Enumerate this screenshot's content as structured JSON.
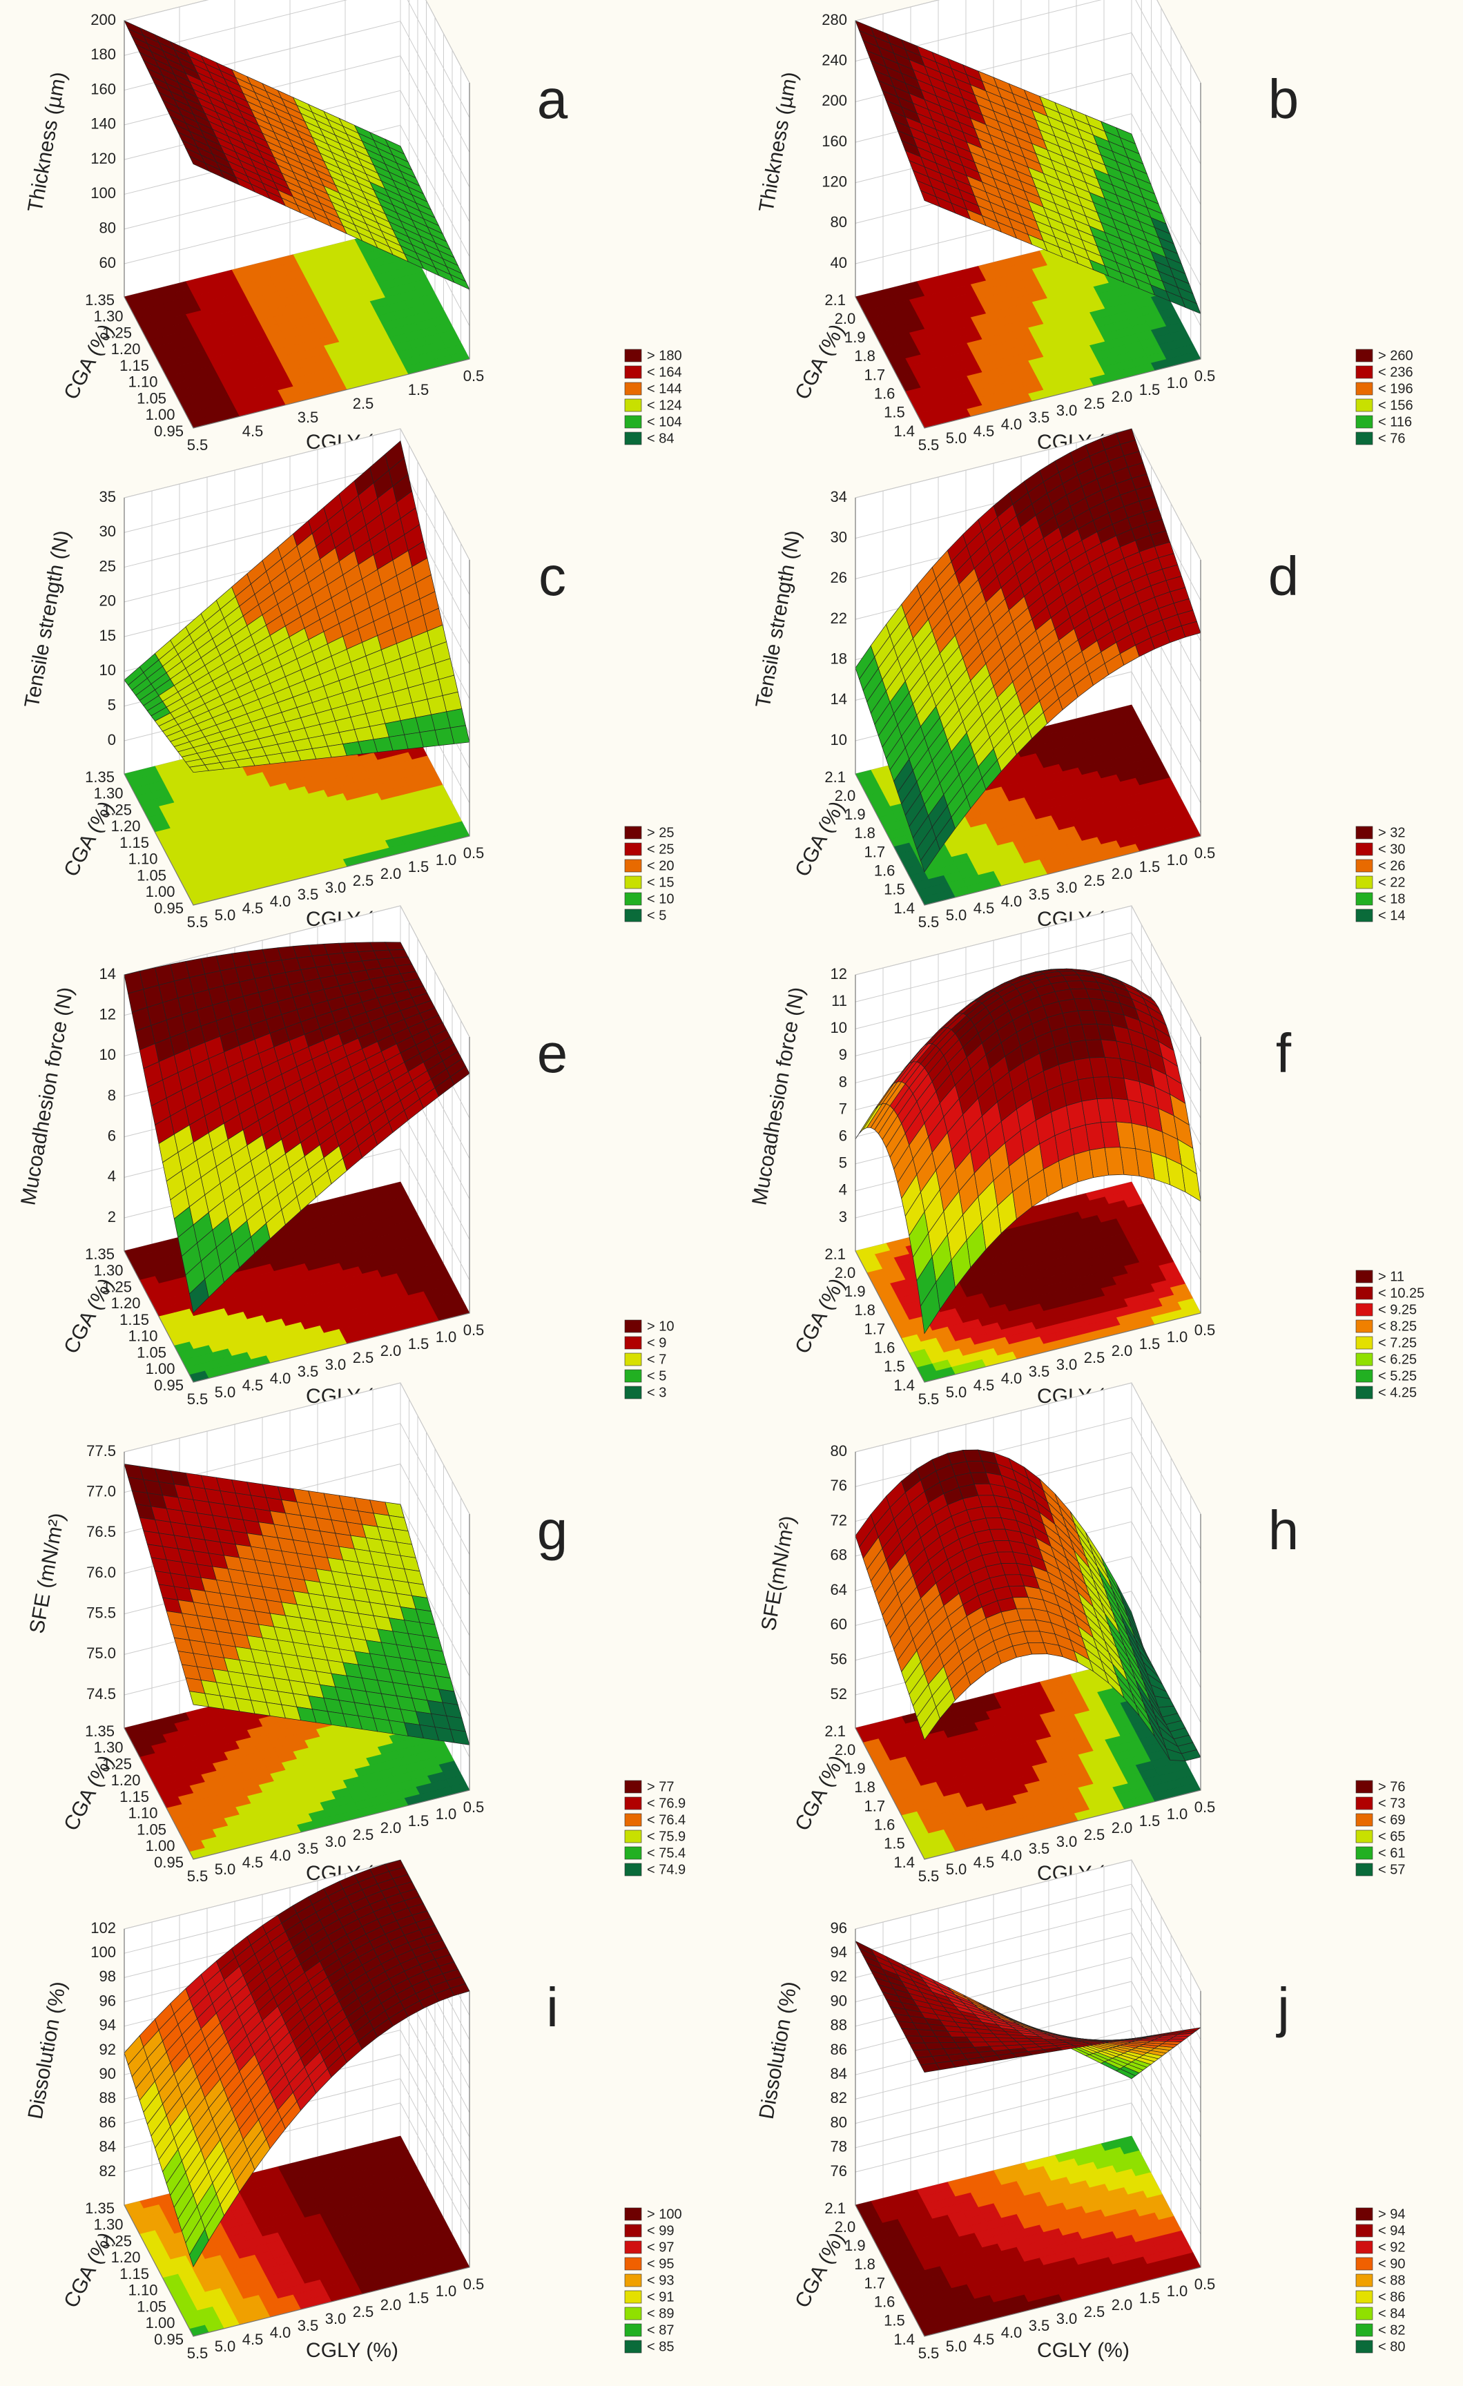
{
  "chart_data": [
    {
      "type": "surface3d",
      "panel_label": "a",
      "zlabel": "Thickness (µm)",
      "xlabel": "CGLY (%)",
      "ylabel": "CGA (%)",
      "xlim": [
        5.5,
        0.5
      ],
      "xticks": [
        5.5,
        4.5,
        3.5,
        2.5,
        1.5,
        0.5
      ],
      "ylim": [
        0.95,
        1.35
      ],
      "yticks": [
        0.95,
        {
          "value": 1,
          "label": "1.00"
        },
        1.05,
        {
          "value": 1.1,
          "label": "1.10"
        },
        1.15,
        {
          "value": 1.2,
          "label": "1.20"
        },
        1.25,
        {
          "value": 1.3,
          "label": "1.30"
        },
        1.35
      ],
      "zlim": [
        60,
        200
      ],
      "zticks": [
        60,
        80,
        100,
        120,
        140,
        160,
        180,
        200
      ],
      "legend": [
        {
          "value": 180,
          "label": "> 180"
        },
        {
          "value": 164,
          "label": "< 164"
        },
        {
          "value": 144,
          "label": "< 144"
        },
        {
          "value": 124,
          "label": "< 124"
        },
        {
          "value": 104,
          "label": "< 104"
        },
        {
          "value": 84,
          "label": "< 84"
        }
      ],
      "colors": [
        "#6e0000",
        "#b00000",
        "#e86a00",
        "#c8e000",
        "#22b022",
        "#0a6b3a"
      ]
    },
    {
      "type": "surface3d",
      "panel_label": "b",
      "zlabel": "Thickness (µm)",
      "xlabel": "CGLY (%)",
      "ylabel": "CGA (%)",
      "xlim": [
        5.5,
        0.5
      ],
      "xticks": [
        5.5,
        {
          "value": 5,
          "label": "5.0"
        },
        4.5,
        {
          "value": 4,
          "label": "4.0"
        },
        3.5,
        {
          "value": 3,
          "label": "3.0"
        },
        2.5,
        {
          "value": 2,
          "label": "2.0"
        },
        1.5,
        {
          "value": 1,
          "label": "1.0"
        },
        0.5
      ],
      "ylim": [
        1.4,
        2.1
      ],
      "yticks": [
        1.4,
        1.5,
        1.6,
        1.7,
        1.8,
        1.9,
        {
          "value": 2,
          "label": "2.0"
        },
        2.1
      ],
      "zlim": [
        40,
        280
      ],
      "zticks": [
        40,
        80,
        120,
        160,
        200,
        240,
        280
      ],
      "legend": [
        {
          "value": 260,
          "label": "> 260"
        },
        {
          "value": 236,
          "label": "< 236"
        },
        {
          "value": 196,
          "label": "< 196"
        },
        {
          "value": 156,
          "label": "< 156"
        },
        {
          "value": 116,
          "label": "< 116"
        },
        {
          "value": 76,
          "label": "< 76"
        }
      ],
      "colors": [
        "#6e0000",
        "#b00000",
        "#e86a00",
        "#c8e000",
        "#22b022",
        "#0a6b3a"
      ]
    },
    {
      "type": "surface3d",
      "panel_label": "c",
      "zlabel": "Tensile strength (N)",
      "xlabel": "CGLY (%)",
      "ylabel": "CGA (%)",
      "xlim": [
        5.5,
        0.5
      ],
      "xticks": [
        5.5,
        {
          "value": 5,
          "label": "5.0"
        },
        4.5,
        {
          "value": 4,
          "label": "4.0"
        },
        3.5,
        {
          "value": 3,
          "label": "3.0"
        },
        2.5,
        {
          "value": 2,
          "label": "2.0"
        },
        1.5,
        {
          "value": 1,
          "label": "1.0"
        },
        0.5
      ],
      "ylim": [
        0.95,
        1.35
      ],
      "yticks": [
        0.95,
        {
          "value": 1,
          "label": "1.00"
        },
        1.05,
        {
          "value": 1.1,
          "label": "1.10"
        },
        1.15,
        {
          "value": 1.2,
          "label": "1.20"
        },
        1.25,
        {
          "value": 1.3,
          "label": "1.30"
        },
        1.35
      ],
      "zlim": [
        0,
        35
      ],
      "zticks": [
        0,
        5,
        10,
        15,
        20,
        25,
        30,
        35
      ],
      "legend": [
        {
          "value": 25,
          "label": "> 25"
        },
        {
          "value": 25,
          "label": "< 25"
        },
        {
          "value": 20,
          "label": "< 20"
        },
        {
          "value": 15,
          "label": "< 15"
        },
        {
          "value": 10,
          "label": "< 10"
        },
        {
          "value": 5,
          "label": "< 5"
        }
      ],
      "colors": [
        "#6e0000",
        "#b00000",
        "#e86a00",
        "#c8e000",
        "#22b022",
        "#0a6b3a"
      ]
    },
    {
      "type": "surface3d",
      "panel_label": "d",
      "zlabel": "Tensile strength (N)",
      "xlabel": "CGLY (%)",
      "ylabel": "CGA (%)",
      "xlim": [
        5.5,
        0.5
      ],
      "xticks": [
        5.5,
        {
          "value": 5,
          "label": "5.0"
        },
        4.5,
        {
          "value": 4,
          "label": "4.0"
        },
        3.5,
        {
          "value": 3,
          "label": "3.0"
        },
        2.5,
        {
          "value": 2,
          "label": "2.0"
        },
        1.5,
        {
          "value": 1,
          "label": "1.0"
        },
        0.5
      ],
      "ylim": [
        1.4,
        2.1
      ],
      "yticks": [
        1.4,
        1.5,
        1.6,
        1.7,
        1.8,
        1.9,
        {
          "value": 2,
          "label": "2.0"
        },
        2.1
      ],
      "zlim": [
        10,
        34
      ],
      "zticks": [
        10,
        14,
        18,
        22,
        26,
        30,
        34
      ],
      "legend": [
        {
          "value": 32,
          "label": "> 32"
        },
        {
          "value": 30,
          "label": "< 30"
        },
        {
          "value": 26,
          "label": "< 26"
        },
        {
          "value": 22,
          "label": "< 22"
        },
        {
          "value": 18,
          "label": "< 18"
        },
        {
          "value": 14,
          "label": "< 14"
        }
      ],
      "colors": [
        "#6e0000",
        "#b00000",
        "#e86a00",
        "#c8e000",
        "#22b022",
        "#0a6b3a"
      ]
    },
    {
      "type": "surface3d",
      "panel_label": "e",
      "zlabel": "Mucoadhesion force (N)",
      "xlabel": "CGLY (%)",
      "ylabel": "CGA (%)",
      "xlim": [
        5.5,
        0.5
      ],
      "xticks": [
        5.5,
        {
          "value": 5,
          "label": "5.0"
        },
        4.5,
        {
          "value": 4,
          "label": "4.0"
        },
        3.5,
        {
          "value": 3,
          "label": "3.0"
        },
        2.5,
        {
          "value": 2,
          "label": "2.0"
        },
        1.5,
        {
          "value": 1,
          "label": "1.0"
        },
        0.5
      ],
      "ylim": [
        0.95,
        1.35
      ],
      "yticks": [
        0.95,
        {
          "value": 1,
          "label": "1.00"
        },
        1.05,
        {
          "value": 1.1,
          "label": "1.10"
        },
        1.15,
        {
          "value": 1.2,
          "label": "1.20"
        },
        1.25,
        {
          "value": 1.3,
          "label": "1.30"
        },
        1.35
      ],
      "zlim": [
        2,
        14
      ],
      "zticks": [
        2,
        4,
        6,
        8,
        10,
        12,
        14
      ],
      "legend": [
        {
          "value": 10,
          "label": "> 10"
        },
        {
          "value": 9,
          "label": "< 9"
        },
        {
          "value": 7,
          "label": "< 7"
        },
        {
          "value": 5,
          "label": "< 5"
        },
        {
          "value": 3,
          "label": "< 3"
        }
      ],
      "colors": [
        "#6e0000",
        "#b00000",
        "#d8e000",
        "#22b022",
        "#0a6b3a"
      ]
    },
    {
      "type": "surface3d",
      "panel_label": "f",
      "zlabel": "Mucoadhesion force (N)",
      "xlabel": "CGLY (%)",
      "ylabel": "CGA (%)",
      "xlim": [
        5.5,
        0.5
      ],
      "xticks": [
        5.5,
        {
          "value": 5,
          "label": "5.0"
        },
        4.5,
        {
          "value": 4,
          "label": "4.0"
        },
        3.5,
        {
          "value": 3,
          "label": "3.0"
        },
        2.5,
        {
          "value": 2,
          "label": "2.0"
        },
        1.5,
        {
          "value": 1,
          "label": "1.0"
        },
        0.5
      ],
      "ylim": [
        1.4,
        2.1
      ],
      "yticks": [
        1.4,
        1.5,
        1.6,
        1.7,
        1.8,
        1.9,
        {
          "value": 2,
          "label": "2.0"
        },
        2.1
      ],
      "zlim": [
        3,
        12
      ],
      "zticks": [
        3,
        4,
        5,
        6,
        7,
        8,
        9,
        10,
        11,
        12
      ],
      "legend": [
        {
          "value": 11,
          "label": "> 11"
        },
        {
          "value": 10.25,
          "label": "< 10.25"
        },
        {
          "value": 9.25,
          "label": "< 9.25"
        },
        {
          "value": 8.25,
          "label": "< 8.25"
        },
        {
          "value": 7.25,
          "label": "< 7.25"
        },
        {
          "value": 6.25,
          "label": "< 6.25"
        },
        {
          "value": 5.25,
          "label": "< 5.25"
        },
        {
          "value": 4.25,
          "label": "< 4.25"
        }
      ],
      "colors": [
        "#6e0000",
        "#9e0000",
        "#d81010",
        "#f08000",
        "#e4e000",
        "#90e000",
        "#22b022",
        "#0a6b3a"
      ]
    },
    {
      "type": "surface3d",
      "panel_label": "g",
      "zlabel": "SFE (mN/m²)",
      "xlabel": "CGLY (%)",
      "ylabel": "CGA (%)",
      "xlim": [
        5.5,
        0.5
      ],
      "xticks": [
        5.5,
        {
          "value": 5,
          "label": "5.0"
        },
        4.5,
        {
          "value": 4,
          "label": "4.0"
        },
        3.5,
        {
          "value": 3,
          "label": "3.0"
        },
        2.5,
        {
          "value": 2,
          "label": "2.0"
        },
        1.5,
        {
          "value": 1,
          "label": "1.0"
        },
        0.5
      ],
      "ylim": [
        0.95,
        1.35
      ],
      "yticks": [
        0.95,
        {
          "value": 1,
          "label": "1.00"
        },
        1.05,
        {
          "value": 1.1,
          "label": "1.10"
        },
        1.15,
        {
          "value": 1.2,
          "label": "1.20"
        },
        1.25,
        {
          "value": 1.3,
          "label": "1.30"
        },
        1.35
      ],
      "zlim": [
        74.5,
        77.5
      ],
      "zticks": [
        74.5,
        {
          "value": 75,
          "label": "75.0"
        },
        75.5,
        {
          "value": 76,
          "label": "76.0"
        },
        76.5,
        {
          "value": 77,
          "label": "77.0"
        },
        77.5
      ],
      "legend": [
        {
          "value": 77,
          "label": "> 77"
        },
        {
          "value": 76.9,
          "label": "< 76.9"
        },
        {
          "value": 76.4,
          "label": "< 76.4"
        },
        {
          "value": 75.9,
          "label": "< 75.9"
        },
        {
          "value": 75.4,
          "label": "< 75.4"
        },
        {
          "value": 74.9,
          "label": "< 74.9"
        }
      ],
      "colors": [
        "#6e0000",
        "#b00000",
        "#e86a00",
        "#c8e000",
        "#22b022",
        "#0a6b3a"
      ]
    },
    {
      "type": "surface3d",
      "panel_label": "h",
      "zlabel": "SFE(mN/m²)",
      "xlabel": "CGLY (%)",
      "ylabel": "CGA (%)",
      "xlim": [
        5.5,
        0.5
      ],
      "xticks": [
        5.5,
        {
          "value": 5,
          "label": "5.0"
        },
        4.5,
        {
          "value": 4,
          "label": "4.0"
        },
        3.5,
        {
          "value": 3,
          "label": "3.0"
        },
        2.5,
        {
          "value": 2,
          "label": "2.0"
        },
        1.5,
        {
          "value": 1,
          "label": "1.0"
        },
        0.5
      ],
      "ylim": [
        1.4,
        2.1
      ],
      "yticks": [
        1.4,
        1.5,
        1.6,
        1.7,
        1.8,
        1.9,
        {
          "value": 2,
          "label": "2.0"
        },
        2.1
      ],
      "zlim": [
        52,
        80
      ],
      "zticks": [
        52,
        56,
        60,
        64,
        68,
        72,
        76,
        80
      ],
      "legend": [
        {
          "value": 76,
          "label": "> 76"
        },
        {
          "value": 73,
          "label": "< 73"
        },
        {
          "value": 69,
          "label": "< 69"
        },
        {
          "value": 65,
          "label": "< 65"
        },
        {
          "value": 61,
          "label": "< 61"
        },
        {
          "value": 57,
          "label": "< 57"
        }
      ],
      "colors": [
        "#6e0000",
        "#b00000",
        "#e86a00",
        "#c8e000",
        "#22b022",
        "#0a6b3a"
      ]
    },
    {
      "type": "surface3d",
      "panel_label": "i",
      "zlabel": "Dissolution (%)",
      "xlabel": "CGLY (%)",
      "ylabel": "CGA (%)",
      "xlim": [
        5.5,
        0.5
      ],
      "xticks": [
        5.5,
        {
          "value": 5,
          "label": "5.0"
        },
        4.5,
        {
          "value": 4,
          "label": "4.0"
        },
        3.5,
        {
          "value": 3,
          "label": "3.0"
        },
        2.5,
        {
          "value": 2,
          "label": "2.0"
        },
        1.5,
        {
          "value": 1,
          "label": "1.0"
        },
        0.5
      ],
      "ylim": [
        0.95,
        1.35
      ],
      "yticks": [
        0.95,
        {
          "value": 1,
          "label": "1.00"
        },
        1.05,
        {
          "value": 1.1,
          "label": "1.10"
        },
        1.15,
        {
          "value": 1.2,
          "label": "1.20"
        },
        1.25,
        {
          "value": 1.3,
          "label": "1.30"
        },
        1.35
      ],
      "zlim": [
        82,
        102
      ],
      "zticks": [
        82,
        84,
        86,
        88,
        90,
        92,
        94,
        96,
        98,
        100,
        102
      ],
      "legend": [
        {
          "value": 100,
          "label": "> 100"
        },
        {
          "value": 99,
          "label": "< 99"
        },
        {
          "value": 97,
          "label": "< 97"
        },
        {
          "value": 95,
          "label": "< 95"
        },
        {
          "value": 93,
          "label": "< 93"
        },
        {
          "value": 91,
          "label": "< 91"
        },
        {
          "value": 89,
          "label": "< 89"
        },
        {
          "value": 87,
          "label": "< 87"
        },
        {
          "value": 85,
          "label": "< 85"
        }
      ],
      "colors": [
        "#6e0000",
        "#9e0000",
        "#d01010",
        "#f06000",
        "#f0a000",
        "#e4e000",
        "#90e000",
        "#22b022",
        "#0a6b3a"
      ]
    },
    {
      "type": "surface3d",
      "panel_label": "j",
      "zlabel": "Dissolution (%)",
      "xlabel": "CGLY (%)",
      "ylabel": "CGA (%)",
      "xlim": [
        5.5,
        0.5
      ],
      "xticks": [
        5.5,
        {
          "value": 5,
          "label": "5.0"
        },
        4.5,
        {
          "value": 4,
          "label": "4.0"
        },
        3.5,
        {
          "value": 3,
          "label": "3.0"
        },
        2.5,
        {
          "value": 2,
          "label": "2.0"
        },
        1.5,
        {
          "value": 1,
          "label": "1.0"
        },
        0.5
      ],
      "ylim": [
        1.4,
        2.1
      ],
      "yticks": [
        1.4,
        1.5,
        1.6,
        1.7,
        1.8,
        1.9,
        {
          "value": 2,
          "label": "2.0"
        },
        2.1
      ],
      "zlim": [
        76,
        96
      ],
      "zticks": [
        76,
        78,
        80,
        82,
        84,
        86,
        88,
        90,
        92,
        94,
        96
      ],
      "legend": [
        {
          "value": 94,
          "label": "> 94"
        },
        {
          "value": 94,
          "label": "< 94"
        },
        {
          "value": 92,
          "label": "< 92"
        },
        {
          "value": 90,
          "label": "< 90"
        },
        {
          "value": 88,
          "label": "< 88"
        },
        {
          "value": 86,
          "label": "< 86"
        },
        {
          "value": 84,
          "label": "< 84"
        },
        {
          "value": 82,
          "label": "< 82"
        },
        {
          "value": 80,
          "label": "< 80"
        }
      ],
      "colors": [
        "#6e0000",
        "#9e0000",
        "#d01010",
        "#f06000",
        "#f0a000",
        "#e4e000",
        "#90e000",
        "#22b022",
        "#0a6b3a"
      ]
    }
  ]
}
